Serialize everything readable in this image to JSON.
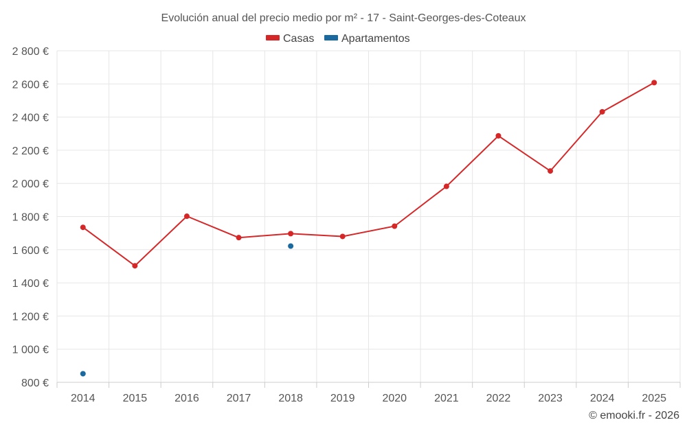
{
  "chart_data": {
    "type": "line",
    "title": "Evolución anual del precio medio por m² - 17 - Saint-Georges-des-Coteaux",
    "categories": [
      "2014",
      "2015",
      "2016",
      "2017",
      "2018",
      "2019",
      "2020",
      "2021",
      "2022",
      "2023",
      "2024",
      "2025"
    ],
    "ylim": [
      800,
      2800
    ],
    "yticks": [
      800,
      1000,
      1200,
      1400,
      1600,
      1800,
      2000,
      2200,
      2400,
      2600,
      2800
    ],
    "ytick_labels": [
      "800 €",
      "1 000 €",
      "1 200 €",
      "1 400 €",
      "1 600 €",
      "1 800 €",
      "2 000 €",
      "2 200 €",
      "2 400 €",
      "2 600 €",
      "2 800 €"
    ],
    "legend_position": "top-center",
    "grid": true,
    "series": [
      {
        "name": "Casas",
        "color": "#d62728",
        "values": [
          1735,
          1503,
          1802,
          1673,
          1697,
          1680,
          1742,
          1982,
          2287,
          2075,
          2432,
          2608
        ]
      },
      {
        "name": "Apartamentos",
        "color": "#1a6aa0",
        "values": [
          852,
          null,
          null,
          null,
          1622,
          null,
          null,
          null,
          null,
          null,
          null,
          null
        ]
      }
    ]
  },
  "credit": "© emooki.fr - 2026"
}
